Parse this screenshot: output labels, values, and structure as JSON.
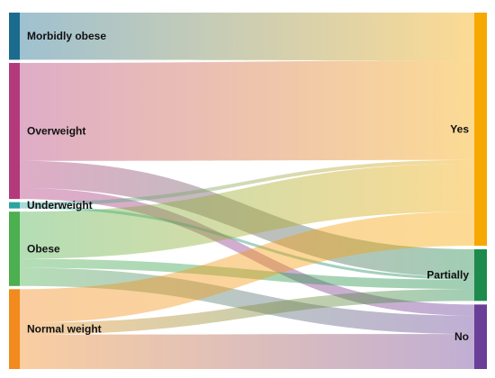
{
  "diagram": {
    "type": "sankey",
    "sources": [
      {
        "id": "morbidly_obese",
        "label": "Morbidly obese",
        "color": "#1a6b8e"
      },
      {
        "id": "overweight",
        "label": "Overweight",
        "color": "#b23a7a"
      },
      {
        "id": "underweight",
        "label": "Underweight",
        "color": "#2aa5a0"
      },
      {
        "id": "obese",
        "label": "Obese",
        "color": "#4caf50"
      },
      {
        "id": "normal_weight",
        "label": "Normal weight",
        "color": "#f28a1e"
      }
    ],
    "targets": [
      {
        "id": "yes",
        "label": "Yes",
        "color": "#f7a800"
      },
      {
        "id": "partially",
        "label": "Partially",
        "color": "#1e8a4c"
      },
      {
        "id": "no",
        "label": "No",
        "color": "#6a3f98"
      }
    ],
    "links": [
      {
        "source": "morbidly_obese",
        "target": "yes",
        "value": 52
      },
      {
        "source": "overweight",
        "target": "yes",
        "value": 108
      },
      {
        "source": "overweight",
        "target": "partially",
        "value": 30
      },
      {
        "source": "overweight",
        "target": "no",
        "value": 12
      },
      {
        "source": "underweight",
        "target": "yes",
        "value": 4
      },
      {
        "source": "underweight",
        "target": "partially",
        "value": 3
      },
      {
        "source": "obese",
        "target": "yes",
        "value": 52
      },
      {
        "source": "obese",
        "target": "partially",
        "value": 10
      },
      {
        "source": "obese",
        "target": "no",
        "value": 20
      },
      {
        "source": "normal_weight",
        "target": "yes",
        "value": 37
      },
      {
        "source": "normal_weight",
        "target": "partially",
        "value": 13
      },
      {
        "source": "normal_weight",
        "target": "no",
        "value": 38
      }
    ]
  }
}
